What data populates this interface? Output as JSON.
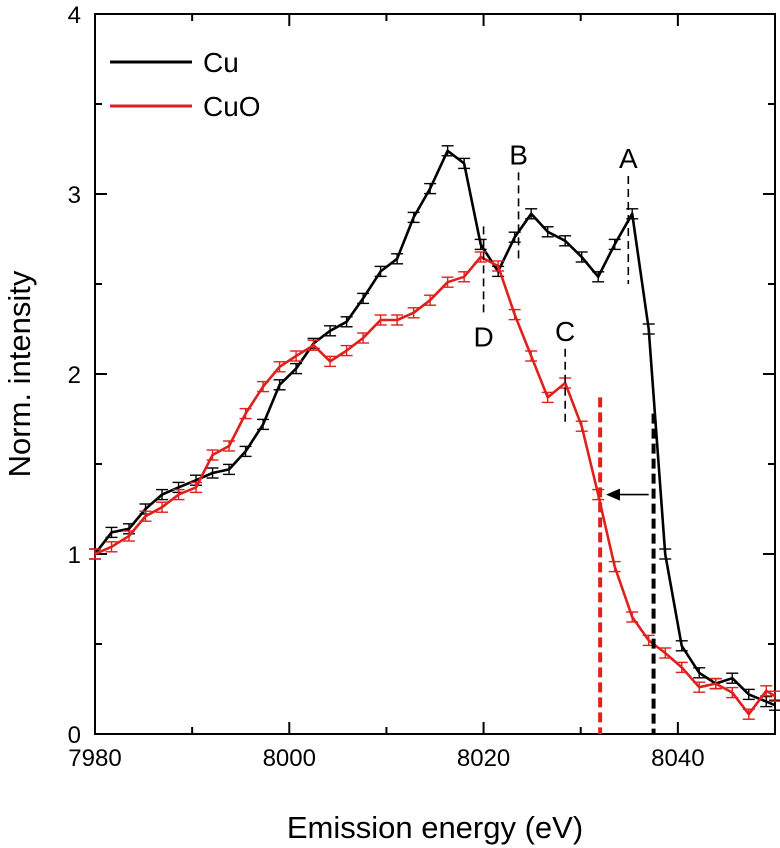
{
  "chart_data": {
    "type": "line",
    "title": "",
    "xlabel": "Emission energy (eV)",
    "ylabel": "Norm. intensity",
    "xlim": [
      7980,
      8050
    ],
    "ylim": [
      0,
      4
    ],
    "xticks": [
      7980,
      8000,
      8020,
      8040
    ],
    "yticks": [
      0,
      1,
      2,
      3,
      4
    ],
    "grid": false,
    "legend_position": "top-left",
    "series": [
      {
        "name": "Cu",
        "color": "#000000",
        "x": [
          7980,
          7981.7,
          7983.5,
          7985.2,
          7986.9,
          7988.6,
          7990.4,
          7992.1,
          7993.8,
          7995.5,
          7997.3,
          7999,
          8000.7,
          8002.5,
          8004.2,
          8005.9,
          8007.6,
          8009.4,
          8011.1,
          8012.8,
          8014.5,
          8016.3,
          8018,
          8019.7,
          8021.5,
          8023.2,
          8024.9,
          8026.6,
          8028.4,
          8030.1,
          8031.8,
          8033.5,
          8035.3,
          8037,
          8038.7,
          8040.4,
          8042.2,
          8043.9,
          8045.6,
          8047.3,
          8049.1,
          8050
        ],
        "values": [
          1.0,
          1.12,
          1.14,
          1.25,
          1.33,
          1.37,
          1.41,
          1.45,
          1.47,
          1.57,
          1.72,
          1.94,
          2.03,
          2.17,
          2.24,
          2.29,
          2.42,
          2.57,
          2.64,
          2.87,
          3.03,
          3.24,
          3.17,
          2.72,
          2.57,
          2.76,
          2.89,
          2.79,
          2.74,
          2.65,
          2.54,
          2.72,
          2.89,
          2.25,
          1.0,
          0.49,
          0.34,
          0.28,
          0.31,
          0.22,
          0.18,
          0.16
        ]
      },
      {
        "name": "CuO",
        "color": "#e0201c",
        "x": [
          7980,
          7981.7,
          7983.5,
          7985.2,
          7986.9,
          7988.6,
          7990.4,
          7992.1,
          7993.8,
          7995.5,
          7997.3,
          7999,
          8000.7,
          8002.5,
          8004.2,
          8005.9,
          8007.6,
          8009.4,
          8011.1,
          8012.8,
          8014.5,
          8016.3,
          8018,
          8019.7,
          8021.5,
          8023.2,
          8024.9,
          8026.6,
          8028.4,
          8030.1,
          8031.8,
          8033.5,
          8035.3,
          8037,
          8038.7,
          8040.4,
          8042.2,
          8043.9,
          8045.6,
          8047.3,
          8049.1,
          8050
        ],
        "values": [
          1.0,
          1.04,
          1.1,
          1.21,
          1.26,
          1.33,
          1.37,
          1.55,
          1.6,
          1.78,
          1.93,
          2.04,
          2.1,
          2.16,
          2.07,
          2.13,
          2.2,
          2.3,
          2.3,
          2.34,
          2.41,
          2.51,
          2.54,
          2.65,
          2.6,
          2.33,
          2.1,
          1.87,
          1.95,
          1.71,
          1.33,
          0.93,
          0.65,
          0.52,
          0.45,
          0.37,
          0.26,
          0.28,
          0.23,
          0.11,
          0.24,
          0.21
        ]
      }
    ],
    "annotations": [
      {
        "label": "A",
        "x": 8034.9,
        "y_from": 2.5,
        "y_to": 3.1
      },
      {
        "label": "B",
        "x": 8023.6,
        "y_from": 2.62,
        "y_to": 3.12
      },
      {
        "label": "C",
        "x": 8028.4,
        "y_from": 1.72,
        "y_to": 2.14
      },
      {
        "label": "D",
        "x": 8020.0,
        "y_from": 2.32,
        "y_to": 2.82
      }
    ],
    "edge_markers": [
      {
        "series": "CuO",
        "x": 8032.0,
        "y_top": 1.87,
        "color": "#e0201c"
      },
      {
        "series": "Cu",
        "x": 8037.5,
        "y_top": 1.78,
        "color": "#000000"
      }
    ],
    "shift_arrow": {
      "x_from": 8037.0,
      "x_to": 8032.6,
      "y": 1.33
    }
  }
}
